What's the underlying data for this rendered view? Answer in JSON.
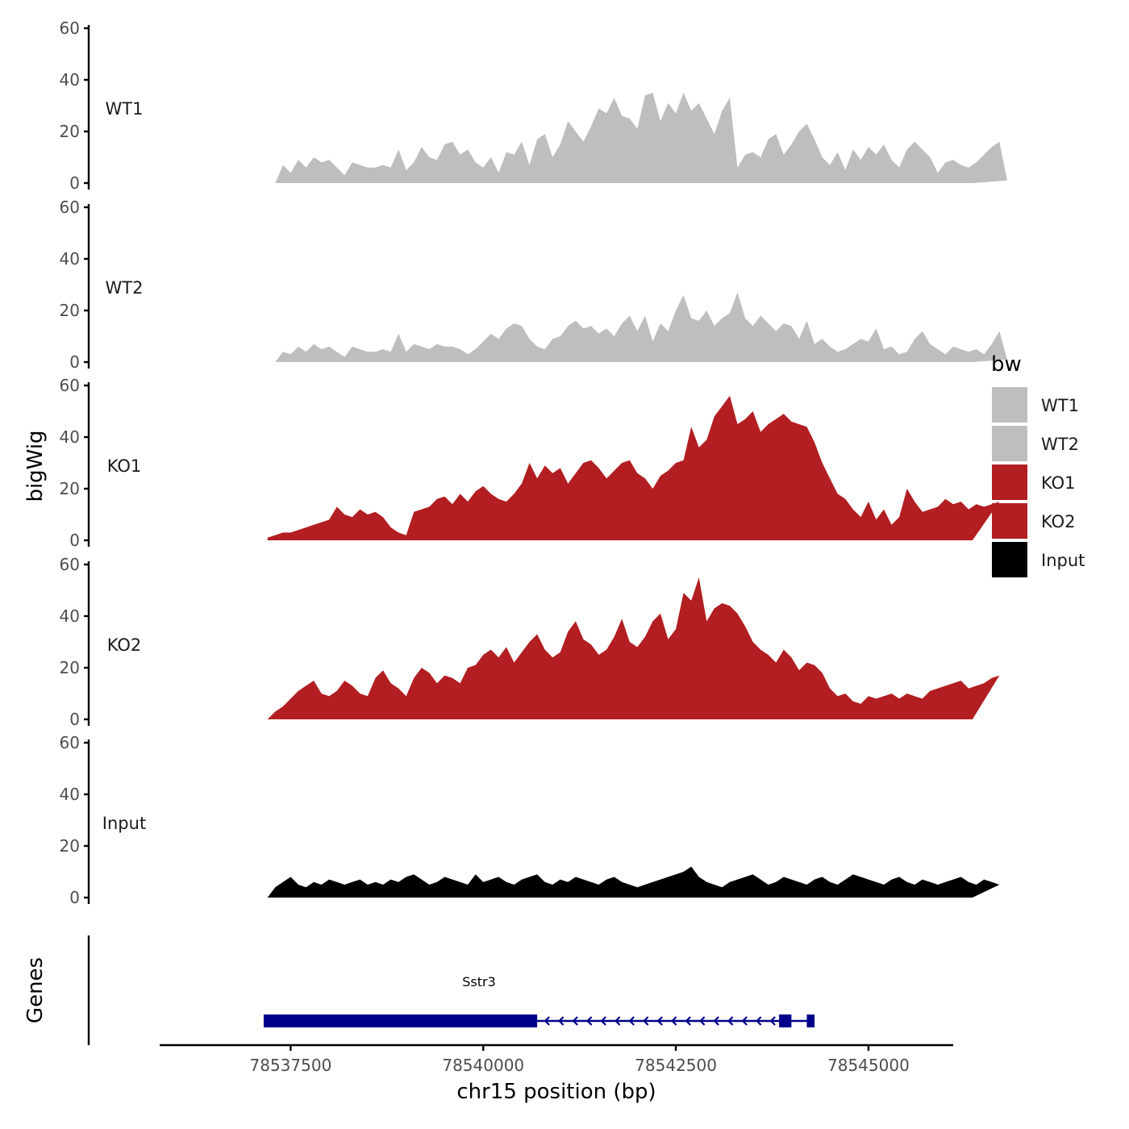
{
  "chart_data": {
    "type": "area",
    "title": "",
    "ylabel": "bigWig",
    "xlabel": "chr15 position (bp)",
    "chromosome": "chr15",
    "xlim": [
      78535800,
      78546100
    ],
    "ylim": [
      0,
      60
    ],
    "x_ticks": [
      78537500,
      78540000,
      78542500,
      78545000
    ],
    "x_tick_labels": [
      "78537500",
      "78540000",
      "78542500",
      "78545000"
    ],
    "y_ticks": [
      0,
      20,
      40,
      60
    ],
    "y_tick_labels": [
      "0",
      "20",
      "40",
      "60"
    ],
    "legend_title": "bw",
    "legend_position": "right",
    "genes_track_label": "Genes",
    "tracks": [
      {
        "name": "WT1",
        "color": "#bebebe",
        "x_start": 78537300,
        "x_end": 78546350,
        "step": 100,
        "values": [
          0,
          7,
          4,
          9,
          6,
          10,
          8,
          9,
          6,
          3,
          8,
          7,
          6,
          6,
          7,
          6,
          13,
          5,
          8,
          14,
          10,
          9,
          15,
          16,
          11,
          13,
          8,
          6,
          10,
          4,
          12,
          11,
          16,
          7,
          17,
          19,
          10,
          15,
          24,
          20,
          16,
          22,
          29,
          27,
          33,
          26,
          25,
          21,
          34,
          35,
          24,
          31,
          27,
          35,
          28,
          31,
          25,
          19,
          28,
          33,
          6,
          11,
          12,
          10,
          17,
          19,
          11,
          15,
          20,
          23,
          17,
          10,
          7,
          12,
          5,
          13,
          9,
          14,
          11,
          15,
          9,
          6,
          13,
          16,
          13,
          10,
          4,
          8,
          9,
          7,
          6,
          8,
          11,
          14,
          16,
          1
        ]
      },
      {
        "name": "WT2",
        "color": "#bebebe",
        "x_start": 78537300,
        "x_end": 78546350,
        "step": 100,
        "values": [
          0,
          4,
          3,
          6,
          4,
          7,
          5,
          6,
          4,
          2,
          6,
          5,
          4,
          4,
          5,
          4,
          11,
          4,
          7,
          6,
          5,
          7,
          6,
          6,
          5,
          3,
          5,
          8,
          11,
          9,
          13,
          15,
          14,
          9,
          6,
          5,
          9,
          10,
          14,
          16,
          13,
          14,
          11,
          13,
          10,
          15,
          18,
          12,
          18,
          8,
          15,
          12,
          20,
          26,
          17,
          16,
          20,
          14,
          17,
          19,
          27,
          17,
          14,
          18,
          15,
          12,
          15,
          14,
          9,
          16,
          7,
          9,
          6,
          4,
          5,
          7,
          9,
          8,
          13,
          5,
          6,
          3,
          4,
          9,
          12,
          7,
          5,
          3,
          6,
          5,
          4,
          5,
          3,
          7,
          12,
          1
        ]
      },
      {
        "name": "KO1",
        "color": "#b21e21",
        "x_start": 78537200,
        "x_end": 78546350,
        "step": 100,
        "values": [
          1,
          2,
          3,
          3,
          4,
          5,
          6,
          7,
          8,
          13,
          10,
          9,
          12,
          10,
          11,
          9,
          5,
          3,
          2,
          11,
          12,
          13,
          16,
          17,
          14,
          18,
          15,
          19,
          21,
          18,
          16,
          15,
          18,
          22,
          30,
          24,
          29,
          26,
          28,
          22,
          26,
          30,
          31,
          28,
          24,
          27,
          30,
          31,
          26,
          24,
          20,
          25,
          27,
          30,
          31,
          44,
          36,
          39,
          48,
          52,
          56,
          45,
          47,
          50,
          42,
          45,
          47,
          49,
          46,
          45,
          44,
          38,
          30,
          24,
          18,
          16,
          12,
          9,
          15,
          8,
          12,
          6,
          9,
          20,
          15,
          11,
          12,
          13,
          16,
          14,
          15,
          12,
          14,
          13,
          14,
          15
        ]
      },
      {
        "name": "KO2",
        "color": "#b21e21",
        "x_start": 78537200,
        "x_end": 78546350,
        "step": 100,
        "values": [
          0,
          3,
          5,
          8,
          11,
          13,
          15,
          10,
          9,
          11,
          15,
          13,
          10,
          9,
          16,
          19,
          14,
          12,
          9,
          16,
          20,
          18,
          14,
          17,
          16,
          14,
          20,
          21,
          25,
          27,
          24,
          28,
          22,
          26,
          30,
          33,
          27,
          24,
          26,
          34,
          38,
          31,
          29,
          25,
          27,
          32,
          39,
          30,
          28,
          32,
          38,
          41,
          31,
          35,
          49,
          46,
          55,
          38,
          43,
          45,
          44,
          41,
          36,
          30,
          27,
          25,
          22,
          27,
          24,
          19,
          22,
          21,
          18,
          12,
          9,
          10,
          7,
          6,
          9,
          8,
          9,
          10,
          8,
          10,
          9,
          8,
          11,
          12,
          13,
          14,
          15,
          12,
          13,
          14,
          16,
          17
        ]
      },
      {
        "name": "Input",
        "color": "#000000",
        "x_start": 78537200,
        "x_end": 78546350,
        "step": 100,
        "values": [
          0,
          4,
          6,
          8,
          5,
          4,
          6,
          5,
          7,
          6,
          5,
          6,
          7,
          5,
          6,
          5,
          7,
          6,
          8,
          9,
          7,
          5,
          6,
          8,
          7,
          6,
          5,
          9,
          6,
          7,
          8,
          6,
          5,
          7,
          8,
          9,
          6,
          5,
          7,
          6,
          8,
          7,
          6,
          5,
          7,
          8,
          6,
          5,
          4,
          5,
          6,
          7,
          8,
          9,
          10,
          12,
          8,
          6,
          5,
          4,
          6,
          7,
          8,
          9,
          7,
          5,
          6,
          8,
          7,
          6,
          5,
          7,
          8,
          6,
          5,
          7,
          9,
          8,
          7,
          6,
          5,
          7,
          8,
          6,
          5,
          7,
          6,
          5,
          6,
          7,
          8,
          6,
          5,
          7,
          6,
          5
        ]
      }
    ],
    "genes": [
      {
        "name": "Sstr3",
        "strand": "-",
        "color": "#00008b",
        "start": 78537150,
        "end": 78544300,
        "exons": [
          [
            78537150,
            78540700
          ],
          [
            78543840,
            78544000
          ],
          [
            78544200,
            78544300
          ]
        ]
      }
    ]
  }
}
